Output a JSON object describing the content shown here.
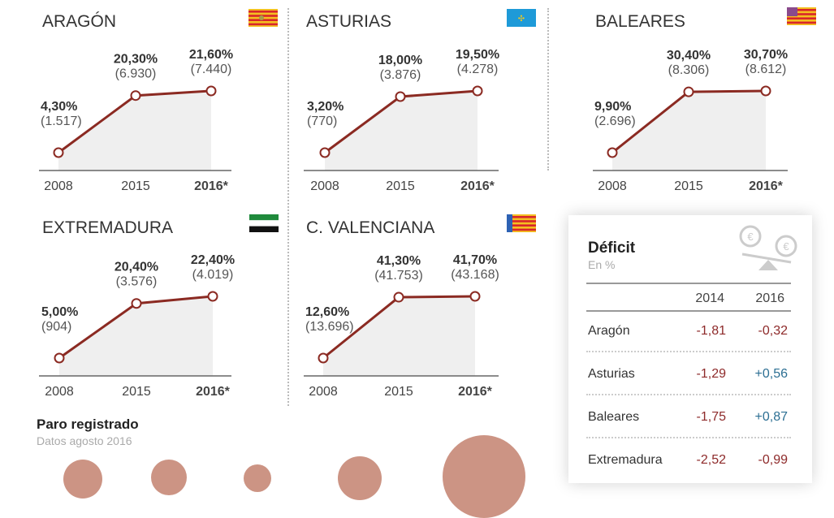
{
  "chart_data": [
    {
      "type": "line",
      "title": "ARAGÓN",
      "flag": "aragon-flag",
      "categories": [
        "2008",
        "2015",
        "2016*"
      ],
      "values": [
        4.3,
        20.3,
        21.6
      ],
      "value_labels": [
        "4,30%",
        "20,30%",
        "21,60%"
      ],
      "count_labels": [
        "(1.517)",
        "(6.930)",
        "(7.440)"
      ]
    },
    {
      "type": "line",
      "title": "ASTURIAS",
      "flag": "asturias-flag",
      "categories": [
        "2008",
        "2015",
        "2016*"
      ],
      "values": [
        3.2,
        18.0,
        19.5
      ],
      "value_labels": [
        "3,20%",
        "18,00%",
        "19,50%"
      ],
      "count_labels": [
        "(770)",
        "(3.876)",
        "(4.278)"
      ]
    },
    {
      "type": "line",
      "title": "BALEARES",
      "flag": "baleares-flag",
      "categories": [
        "2008",
        "2015",
        "2016*"
      ],
      "values": [
        9.9,
        30.4,
        30.7
      ],
      "value_labels": [
        "9,90%",
        "30,40%",
        "30,70%"
      ],
      "count_labels": [
        "(2.696)",
        "(8.306)",
        "(8.612)"
      ]
    },
    {
      "type": "line",
      "title": "EXTREMADURA",
      "flag": "extremadura-flag",
      "categories": [
        "2008",
        "2015",
        "2016*"
      ],
      "values": [
        5.0,
        20.4,
        22.4
      ],
      "value_labels": [
        "5,00%",
        "20,40%",
        "22,40%"
      ],
      "count_labels": [
        "(904)",
        "(3.576)",
        "(4.019)"
      ]
    },
    {
      "type": "line",
      "title": "C. VALENCIANA",
      "flag": "valenciana-flag",
      "categories": [
        "2008",
        "2015",
        "2016*"
      ],
      "values": [
        12.6,
        41.3,
        41.7
      ],
      "value_labels": [
        "12,60%",
        "41,30%",
        "41,70%"
      ],
      "count_labels": [
        "(13.696)",
        "(41.753)",
        "(43.168)"
      ]
    }
  ],
  "colors": {
    "line": "#8b2a22",
    "area": "#efefef",
    "negative": "#8e2a2a",
    "positive": "#2c6f93",
    "bubble": "#cc9484"
  },
  "deficit": {
    "title": "Déficit",
    "subtitle": "En %",
    "icon": "euro-scale-icon",
    "columns": [
      "2014",
      "2016"
    ],
    "rows": [
      {
        "name": "Aragón",
        "v2014": "-1,81",
        "v2016": "-0,32"
      },
      {
        "name": "Asturias",
        "v2014": "-1,29",
        "v2016": "+0,56"
      },
      {
        "name": "Baleares",
        "v2014": "-1,75",
        "v2016": "+0,87"
      },
      {
        "name": "Extremadura",
        "v2014": "-2,52",
        "v2016": "-0,99"
      }
    ]
  },
  "paro": {
    "title": "Paro registrado",
    "subtitle": "Datos agosto 2016"
  }
}
